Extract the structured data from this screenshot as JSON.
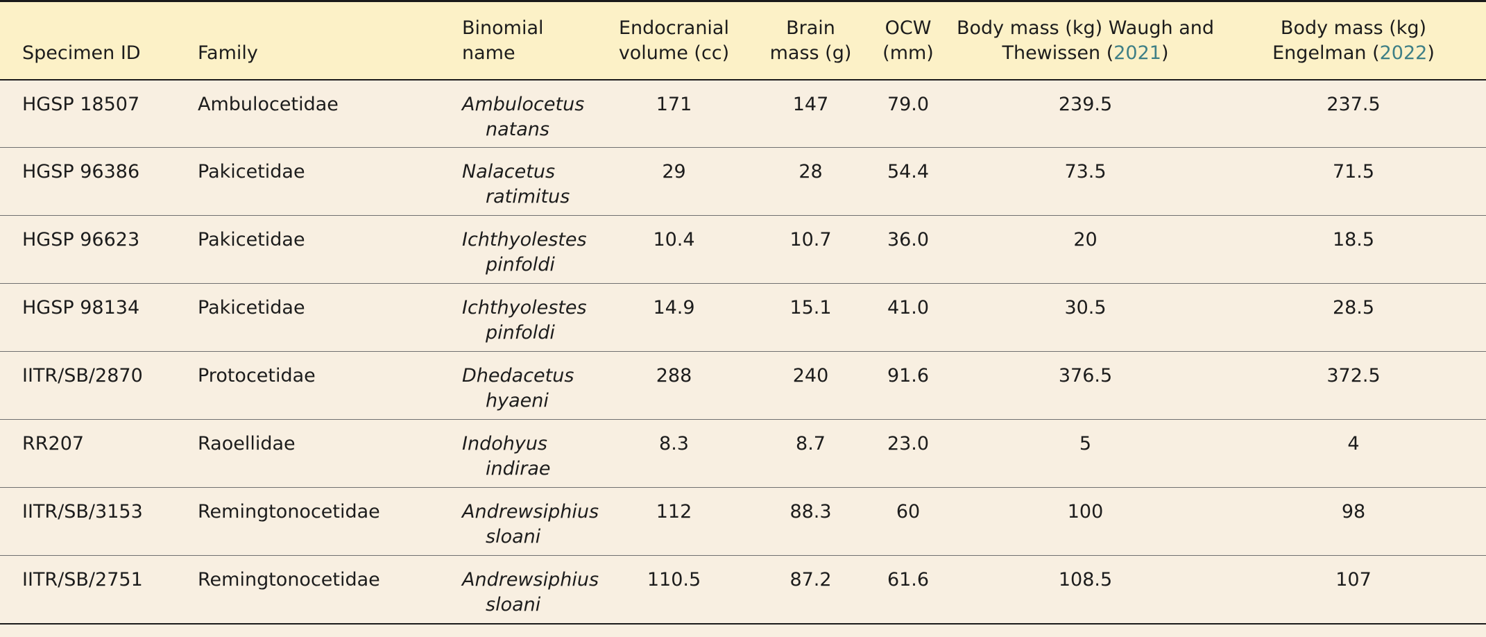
{
  "table": {
    "headers": {
      "specimen_id": "Specimen ID",
      "family": "Family",
      "binomial_line1": "Binomial",
      "binomial_line2": "name",
      "endocranial_line1": "Endocranial",
      "endocranial_line2": "volume (cc)",
      "brain_line1": "Brain",
      "brain_line2": "mass (g)",
      "ocw_line1": "OCW",
      "ocw_line2": "(mm)",
      "bm_waugh_line1": "Body mass (kg) Waugh and",
      "bm_waugh_line2_pre": "Thewissen (",
      "bm_waugh_year": "2021",
      "bm_waugh_line2_post": ")",
      "bm_engelman_line1": "Body mass (kg)",
      "bm_engelman_line2_pre": "Engelman (",
      "bm_engelman_year": "2022",
      "bm_engelman_line2_post": ")"
    },
    "rows": [
      {
        "specimen": "HGSP 18507",
        "family": "Ambulocetidae",
        "genus": "Ambulocetus",
        "species": "natans",
        "endocranial": "171",
        "brain": "147",
        "ocw": "79.0",
        "bm_waugh": "239.5",
        "bm_engelman": "237.5"
      },
      {
        "specimen": "HGSP 96386",
        "family": "Pakicetidae",
        "genus": "Nalacetus",
        "species": "ratimitus",
        "endocranial": "29",
        "brain": "28",
        "ocw": "54.4",
        "bm_waugh": "73.5",
        "bm_engelman": "71.5"
      },
      {
        "specimen": "HGSP 96623",
        "family": "Pakicetidae",
        "genus": "Ichthyolestes",
        "species": "pinfoldi",
        "endocranial": "10.4",
        "brain": "10.7",
        "ocw": "36.0",
        "bm_waugh": "20",
        "bm_engelman": "18.5"
      },
      {
        "specimen": "HGSP 98134",
        "family": "Pakicetidae",
        "genus": "Ichthyolestes",
        "species": "pinfoldi",
        "endocranial": "14.9",
        "brain": "15.1",
        "ocw": "41.0",
        "bm_waugh": "30.5",
        "bm_engelman": "28.5"
      },
      {
        "specimen": "IITR/SB/2870",
        "family": "Protocetidae",
        "genus": "Dhedacetus",
        "species": "hyaeni",
        "endocranial": "288",
        "brain": "240",
        "ocw": "91.6",
        "bm_waugh": "376.5",
        "bm_engelman": "372.5"
      },
      {
        "specimen": "RR207",
        "family": "Raoellidae",
        "genus": "Indohyus",
        "species": "indirae",
        "endocranial": "8.3",
        "brain": "8.7",
        "ocw": "23.0",
        "bm_waugh": "5",
        "bm_engelman": "4"
      },
      {
        "specimen": "IITR/SB/3153",
        "family": "Remingtonocetidae",
        "genus": "Andrewsiphius",
        "species": "sloani",
        "endocranial": "112",
        "brain": "88.3",
        "ocw": "60",
        "bm_waugh": "100",
        "bm_engelman": "98"
      },
      {
        "specimen": "IITR/SB/2751",
        "family": "Remingtonocetidae",
        "genus": "Andrewsiphius",
        "species": "sloani",
        "endocranial": "110.5",
        "brain": "87.2",
        "ocw": "61.6",
        "bm_waugh": "108.5",
        "bm_engelman": "107"
      }
    ]
  }
}
